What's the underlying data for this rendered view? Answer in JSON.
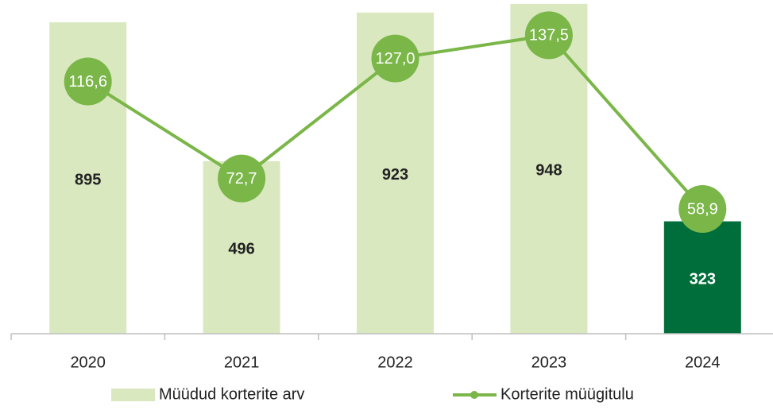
{
  "chart_data": {
    "type": "bar-line",
    "categories": [
      "2020",
      "2021",
      "2022",
      "2023",
      "2024"
    ],
    "series": [
      {
        "name": "Müüdud korterite arv",
        "type": "bar",
        "color": "#d9e8bf",
        "colors": [
          "#d9e8bf",
          "#d9e8bf",
          "#d9e8bf",
          "#d9e8bf",
          "#006e3a"
        ],
        "values": [
          895,
          496,
          923,
          948,
          323
        ]
      },
      {
        "name": "Korterite müügitulu",
        "type": "line",
        "axis": "y2",
        "color": "#7ab648",
        "values": [
          116.6,
          72.7,
          127.0,
          137.5,
          58.9
        ],
        "value_labels": [
          "116,6",
          "72,7",
          "127,0",
          "137,5",
          "58,9"
        ]
      }
    ],
    "ylim": [
      0,
      950
    ],
    "y2lim": [
      2.5,
      152
    ],
    "legend": "bottom"
  }
}
